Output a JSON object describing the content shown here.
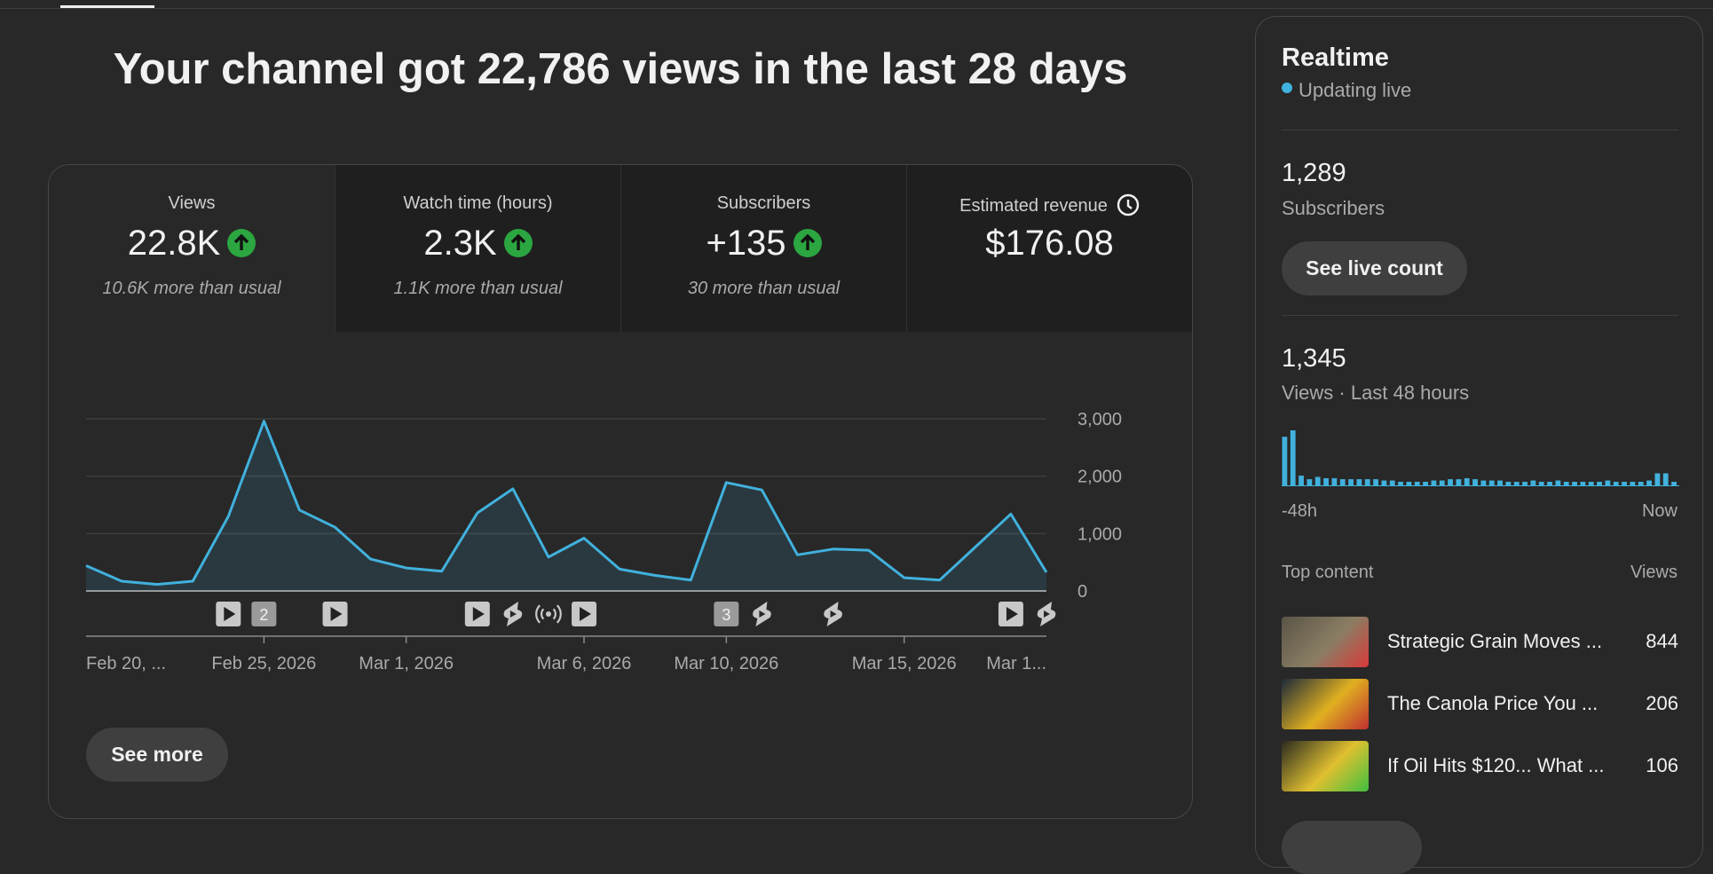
{
  "title": "Your channel got 22,786 views in the last 28 days",
  "metrics": [
    {
      "label": "Views",
      "value": "22.8K",
      "note": "10.6K more than usual",
      "trend": "up"
    },
    {
      "label": "Watch time (hours)",
      "value": "2.3K",
      "note": "1.1K more than usual",
      "trend": "up"
    },
    {
      "label": "Subscribers",
      "value": "+135",
      "note": "30 more than usual",
      "trend": "up"
    },
    {
      "label": "Estimated revenue",
      "value": "$176.08"
    }
  ],
  "chart_data": {
    "type": "line",
    "color": "#41b1dd",
    "grid": true,
    "categories": [
      "Feb 20, ...",
      null,
      null,
      null,
      null,
      "Feb 25, 2026",
      null,
      null,
      null,
      "Mar 1, 2026",
      null,
      null,
      null,
      null,
      "Mar 6, 2026",
      null,
      null,
      null,
      "Mar 10, 2026",
      null,
      null,
      null,
      null,
      "Mar 15, 2026",
      null,
      null,
      null,
      "Mar 1..."
    ],
    "values": [
      440,
      170,
      115,
      170,
      1300,
      2960,
      1410,
      1110,
      555,
      400,
      345,
      1360,
      1780,
      590,
      920,
      380,
      270,
      190,
      1890,
      1760,
      630,
      730,
      710,
      230,
      190,
      765,
      1340,
      325
    ],
    "ylim": [
      0,
      3000
    ],
    "yticks": [
      0,
      {
        "value": 1000,
        "label": "1,000"
      },
      {
        "value": 2000,
        "label": "2,000"
      },
      {
        "value": 3000,
        "label": "3,000"
      }
    ],
    "content_markers": [
      {
        "index": 4,
        "icon": "video"
      },
      {
        "index": 5,
        "label": "2"
      },
      {
        "index": 7,
        "icon": "video"
      },
      {
        "index": 11,
        "icon": "video"
      },
      {
        "index": 12,
        "icon": "short"
      },
      {
        "index": 13,
        "icon": "live"
      },
      {
        "index": 14,
        "icon": "video"
      },
      {
        "index": 18,
        "label": "3"
      },
      {
        "index": 19,
        "icon": "short"
      },
      {
        "index": 21,
        "icon": "short"
      },
      {
        "index": 26,
        "icon": "video"
      },
      {
        "index": 27,
        "icon": "short"
      }
    ]
  },
  "see_more": "See more",
  "realtime": {
    "title": "Realtime",
    "status": "Updating live",
    "subscribers": {
      "value": "1,289",
      "label": "Subscribers",
      "button": "See live count"
    },
    "views": {
      "value": "1,345",
      "label": "Views · Last 48 hours",
      "start": "-48h",
      "end": "Now",
      "bars": [
        190,
        215,
        38,
        24,
        33,
        28,
        28,
        24,
        24,
        24,
        24,
        24,
        19,
        19,
        14,
        14,
        14,
        14,
        19,
        19,
        24,
        24,
        28,
        24,
        19,
        19,
        19,
        14,
        14,
        14,
        19,
        14,
        14,
        19,
        14,
        14,
        14,
        14,
        14,
        19,
        14,
        14,
        14,
        14,
        19,
        47,
        47,
        14
      ]
    },
    "top_content": {
      "title": "Top content",
      "column": "Views",
      "rows": [
        {
          "title": "Strategic Grain Moves ...",
          "views": "844"
        },
        {
          "title": "The Canola Price You ...",
          "views": "206"
        },
        {
          "title": "If Oil Hits $120... What ...",
          "views": "106"
        }
      ]
    }
  }
}
